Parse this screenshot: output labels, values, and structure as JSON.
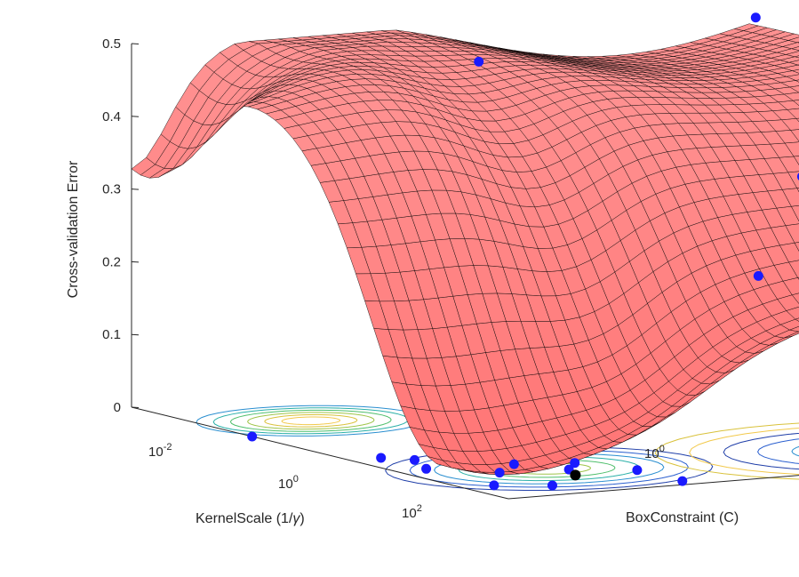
{
  "chart_data": {
    "type": "surface",
    "zlabel": "Cross-validation Error",
    "xlabel_main": "KernelScale (1/",
    "xlabel_greek": "γ",
    "xlabel_close": ")",
    "ylabel": "BoxConstraint (C)",
    "z_ticks": [
      "0",
      "0.1",
      "0.2",
      "0.3",
      "0.4",
      "0.5"
    ],
    "z_tick_values": [
      0,
      0.1,
      0.2,
      0.3,
      0.4,
      0.5
    ],
    "x_ticks": [
      {
        "base": "10",
        "exp": "-2"
      },
      {
        "base": "10",
        "exp": "0"
      },
      {
        "base": "10",
        "exp": "2"
      }
    ],
    "y_ticks": [
      {
        "base": "10",
        "exp": "0"
      }
    ],
    "zlim": [
      0,
      0.5
    ],
    "surface_color": "#ff8080",
    "mesh_color": "#000000",
    "point_color": "#1a1aff",
    "best_point_color": "#000000",
    "observed_points_cv_error": [
      0.44,
      0.475,
      0.46,
      0.335,
      0.225,
      0.0,
      0.0,
      0.0,
      0.0,
      0.0,
      0.0,
      0.0,
      0.0,
      0.0,
      0.0,
      0.0,
      0.0
    ],
    "minimum_point_cv_error": 0.0
  }
}
